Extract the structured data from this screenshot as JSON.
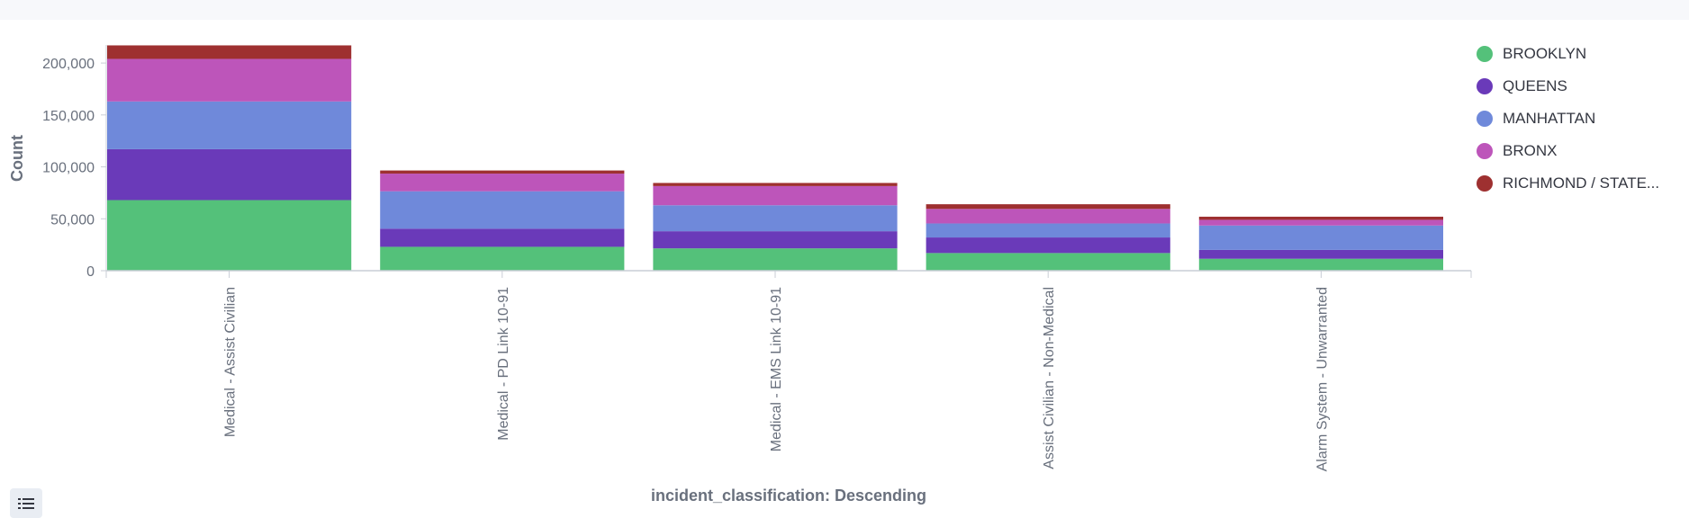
{
  "chart_data": {
    "type": "bar",
    "stacked": true,
    "categories": [
      "Medical - Assist Civilian",
      "Medical - PD Link 10-91",
      "Medical - EMS Link 10-91",
      "Assist Civilian - Non-Medical",
      "Alarm System - Unwarranted"
    ],
    "series": [
      {
        "name": "BROOKLYN",
        "color": "#54c17a",
        "values": [
          68000,
          23000,
          21500,
          17000,
          11500
        ]
      },
      {
        "name": "QUEENS",
        "color": "#6a3ab9",
        "values": [
          49000,
          17500,
          16500,
          15000,
          8500
        ]
      },
      {
        "name": "MANHATTAN",
        "color": "#6f89da",
        "values": [
          46000,
          36000,
          25000,
          13500,
          23500
        ]
      },
      {
        "name": "BRONX",
        "color": "#bd55ba",
        "values": [
          41000,
          17000,
          18500,
          14000,
          5500
        ]
      },
      {
        "name": "RICHMOND / STATE...",
        "color": "#9e3030",
        "values": [
          13000,
          3000,
          3000,
          4500,
          3000
        ]
      }
    ],
    "ylabel": "Count",
    "xlabel": "incident_classification: Descending",
    "ylim": [
      0,
      220000
    ],
    "yticks": [
      0,
      50000,
      100000,
      150000,
      200000
    ],
    "ytick_labels": [
      "0",
      "50,000",
      "100,000",
      "150,000",
      "200,000"
    ],
    "legend_position": "top-right",
    "grid": false
  },
  "legend_toggle_icon": "list-icon"
}
